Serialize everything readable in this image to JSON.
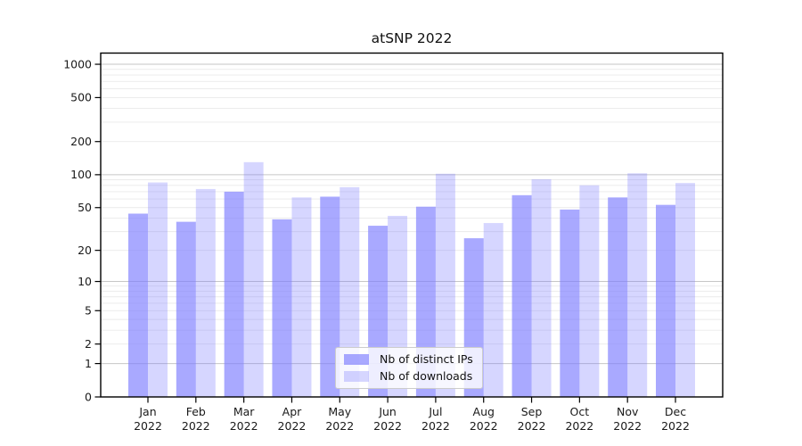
{
  "chart_data": {
    "type": "bar",
    "title": "atSNP 2022",
    "categories": [
      "Jan 2022",
      "Feb 2022",
      "Mar 2022",
      "Apr 2022",
      "May 2022",
      "Jun 2022",
      "Jul 2022",
      "Aug 2022",
      "Sep 2022",
      "Oct 2022",
      "Nov 2022",
      "Dec 2022"
    ],
    "series": [
      {
        "name": "Nb of distinct IPs",
        "color": "#7c7cff",
        "opacity": 0.66,
        "values": [
          44,
          37,
          70,
          39,
          63,
          34,
          51,
          26,
          65,
          48,
          62,
          53
        ]
      },
      {
        "name": "Nb of downloads",
        "color": "#7c7cff",
        "opacity": 0.31,
        "values": [
          85,
          74,
          130,
          62,
          77,
          42,
          102,
          36,
          91,
          80,
          103,
          84
        ]
      }
    ],
    "yscale": "log1p",
    "yticks": [
      0,
      1,
      2,
      5,
      10,
      20,
      50,
      100,
      200,
      500,
      1000
    ],
    "ylim": [
      0,
      1100
    ],
    "xlabel": "",
    "ylabel": "",
    "grid": "horizontal-major-minor",
    "legend_position": "lower-center"
  },
  "colors": {
    "background": "#ffffff",
    "axis": "#000000",
    "major_grid": "#c6c6c6",
    "minor_grid": "#eaeaea",
    "text": "#1a1a1a",
    "legend_border": "#cccccc"
  }
}
